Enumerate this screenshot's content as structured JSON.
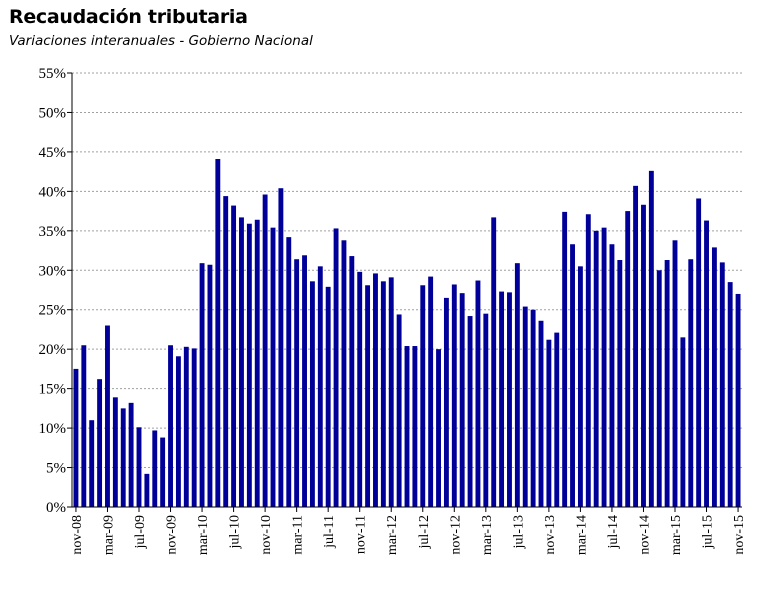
{
  "title": "Recaudación tributaria",
  "subtitle": "Variaciones interanuales - Gobierno Nacional",
  "colors": {
    "bar": "#000099",
    "grid": "#a0a0a0",
    "axis": "#000000"
  },
  "chart_data": {
    "type": "bar",
    "title": "Recaudación tributaria",
    "subtitle": "Variaciones interanuales - Gobierno Nacional",
    "xlabel": "",
    "ylabel": "",
    "ylim": [
      0,
      55
    ],
    "y_unit": "%",
    "yticks": [
      "0%",
      "5%",
      "10%",
      "15%",
      "20%",
      "25%",
      "30%",
      "35%",
      "40%",
      "45%",
      "50%",
      "55%"
    ],
    "grid": "horizontal dashed",
    "legend": "none",
    "categories": [
      "nov-08",
      "dic-08",
      "ene-09",
      "feb-09",
      "mar-09",
      "abr-09",
      "may-09",
      "jun-09",
      "jul-09",
      "ago-09",
      "sep-09",
      "oct-09",
      "nov-09",
      "dic-09",
      "ene-10",
      "feb-10",
      "mar-10",
      "abr-10",
      "may-10",
      "jun-10",
      "jul-10",
      "ago-10",
      "sep-10",
      "oct-10",
      "nov-10",
      "dic-10",
      "ene-11",
      "feb-11",
      "mar-11",
      "abr-11",
      "may-11",
      "jun-11",
      "jul-11",
      "ago-11",
      "sep-11",
      "oct-11",
      "nov-11",
      "dic-11",
      "ene-12",
      "feb-12",
      "mar-12",
      "abr-12",
      "may-12",
      "jun-12",
      "jul-12",
      "ago-12",
      "sep-12",
      "oct-12",
      "nov-12",
      "dic-12",
      "ene-13",
      "feb-13",
      "mar-13",
      "abr-13",
      "may-13",
      "jun-13",
      "jul-13",
      "ago-13",
      "sep-13",
      "oct-13",
      "nov-13",
      "dic-13",
      "ene-14",
      "feb-14",
      "mar-14",
      "abr-14",
      "may-14",
      "jun-14",
      "jul-14",
      "ago-14",
      "sep-14",
      "oct-14",
      "nov-14",
      "dic-14",
      "ene-15",
      "feb-15",
      "mar-15",
      "abr-15",
      "may-15",
      "jun-15",
      "jul-15",
      "ago-15",
      "sep-15",
      "oct-15",
      "nov-15"
    ],
    "x_tick_labels": [
      "nov-08",
      "mar-09",
      "jul-09",
      "nov-09",
      "mar-10",
      "jul-10",
      "nov-10",
      "mar-11",
      "jul-11",
      "nov-11",
      "mar-12",
      "jul-12",
      "nov-12",
      "mar-13",
      "jul-13",
      "nov-13",
      "mar-14",
      "jul-14",
      "nov-14",
      "mar-15",
      "jul-15",
      "nov-15"
    ],
    "values": [
      17.5,
      20.5,
      11.0,
      16.2,
      23.0,
      13.9,
      12.5,
      13.2,
      10.1,
      4.2,
      9.7,
      8.8,
      20.5,
      19.1,
      20.3,
      20.1,
      30.9,
      30.7,
      44.1,
      39.4,
      38.2,
      36.7,
      35.9,
      36.4,
      39.6,
      35.4,
      40.4,
      34.2,
      31.4,
      31.9,
      28.6,
      30.5,
      27.9,
      35.3,
      33.8,
      31.8,
      29.8,
      28.1,
      29.6,
      28.6,
      29.1,
      24.4,
      20.4,
      20.4,
      28.1,
      29.2,
      20.0,
      26.5,
      28.2,
      27.1,
      24.2,
      28.7,
      24.5,
      36.7,
      27.3,
      27.2,
      30.9,
      25.4,
      25.0,
      23.6,
      21.2,
      22.1,
      37.4,
      33.3,
      30.5,
      37.1,
      35.0,
      35.4,
      33.3,
      31.3,
      37.5,
      40.7,
      38.3,
      42.6,
      30.0,
      31.3,
      33.8,
      21.5,
      31.4,
      39.1,
      36.3,
      32.9,
      31.0,
      28.5,
      27.0
    ]
  }
}
